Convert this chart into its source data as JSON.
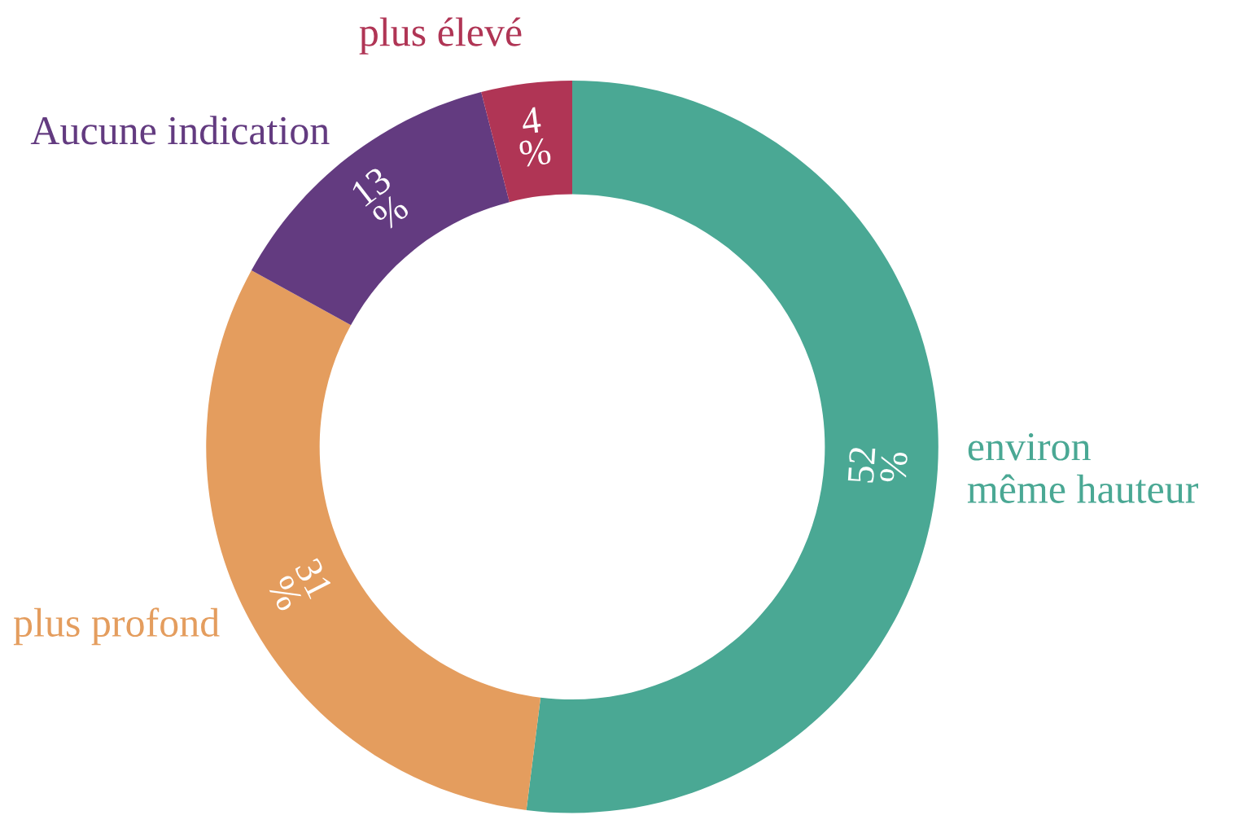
{
  "chart_data": {
    "type": "donut",
    "categories": [
      "environ\nmême hauteur",
      "plus profond",
      "Aucune indication",
      "plus élevé"
    ],
    "values": [
      52,
      31,
      13,
      4
    ],
    "colors": [
      "#4aa894",
      "#e49d5e",
      "#633b80",
      "#b03555"
    ],
    "value_labels": [
      "52\n%",
      "31\n%",
      "13\n%",
      "4\n%"
    ],
    "legend": false
  }
}
